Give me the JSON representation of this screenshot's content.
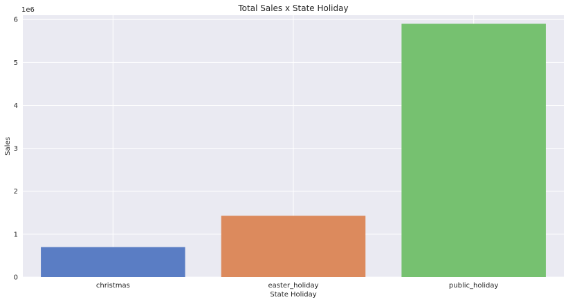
{
  "chart_data": {
    "type": "bar",
    "title": "Total Sales x State Holiday",
    "xlabel": "State Holiday",
    "ylabel": "Sales",
    "offset_text": "1e6",
    "categories": [
      "christmas",
      "easter_holiday",
      "public_holiday"
    ],
    "values": [
      700000,
      1430000,
      5900000
    ],
    "colors": [
      "#5a7dc4",
      "#dc8a5d",
      "#76c170"
    ],
    "ylim": [
      0,
      6100000
    ],
    "yticks": [
      0,
      1000000,
      2000000,
      3000000,
      4000000,
      5000000,
      6000000
    ],
    "ytick_labels": [
      "0",
      "1",
      "2",
      "3",
      "4",
      "5",
      "6"
    ],
    "grid": true,
    "background": "#eaeaf2",
    "grid_color": "#ffffff"
  }
}
